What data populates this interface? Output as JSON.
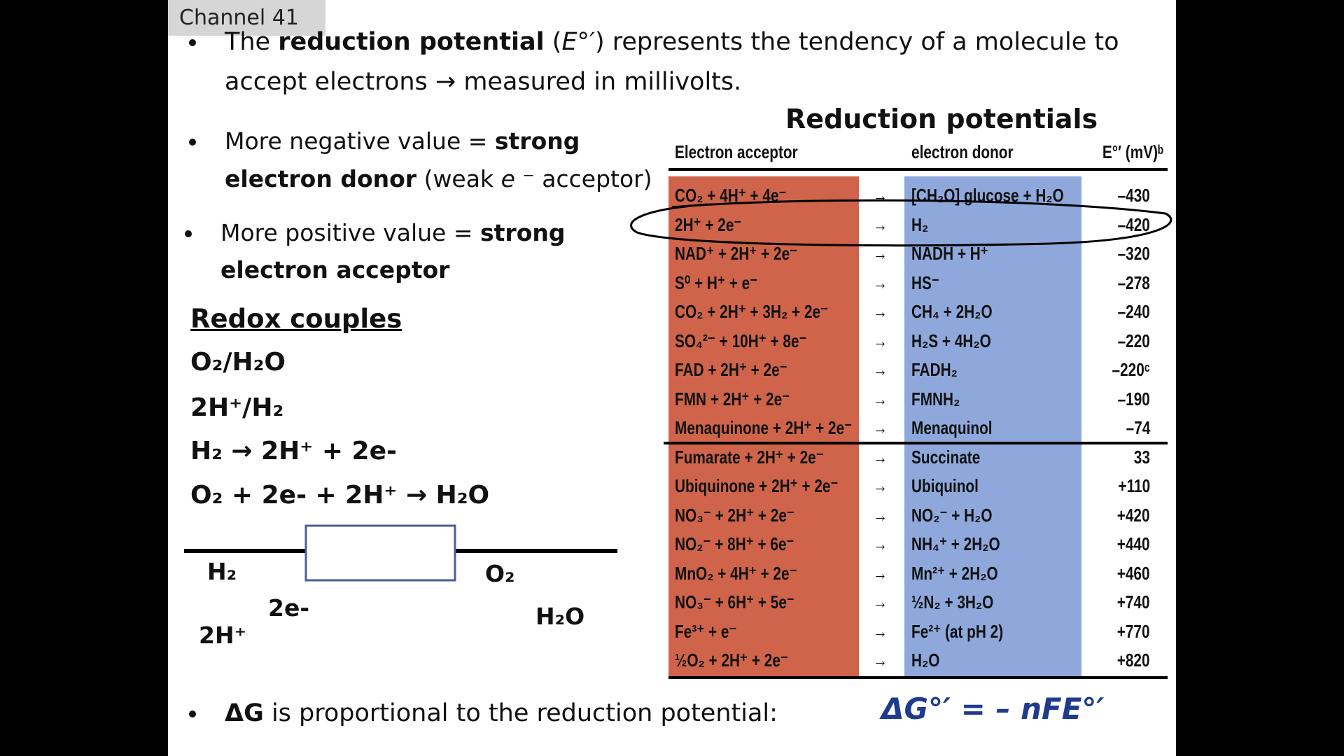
{
  "channel": "Channel 41",
  "bullets": [
    [
      "The ",
      "reduction potential",
      " (",
      "E°′",
      ") represents the tendency of a molecule to accept electrons → measured in millivolts."
    ],
    [
      "More negative value = ",
      "strong electron donor",
      " (weak ",
      "e",
      " ⁻ acceptor)"
    ],
    [
      "More positive value = ",
      "strong electron acceptor"
    ],
    [
      "ΔG",
      " is proportional to the reduction potential:"
    ]
  ],
  "formula": "ΔG°′ = – nFE°′",
  "redox": {
    "title": "Redox couples",
    "lines": [
      "O₂/H₂O",
      "2H⁺/H₂",
      "H₂ → 2H⁺ + 2e-",
      "O₂ + 2e- + 2H⁺ → H₂O"
    ]
  },
  "diagram": {
    "labels": [
      "H₂",
      "2e-",
      "2H⁺",
      "O₂",
      "H₂O"
    ]
  },
  "table": {
    "title": "Reduction potentials",
    "headers": [
      "Electron acceptor",
      "electron donor",
      "E°′ (mV)ᵇ"
    ],
    "rows": [
      [
        "CO₂ + 4H⁺ + 4e⁻",
        "→",
        "[CH₂O] glucose + H₂O",
        "–430"
      ],
      [
        "2H⁺ + 2e⁻",
        "→",
        "H₂",
        "–420"
      ],
      [
        "NAD⁺ + 2H⁺ + 2e⁻",
        "→",
        "NADH + H⁺",
        "–320"
      ],
      [
        "S⁰ + H⁺ + e⁻",
        "→",
        "HS⁻",
        "–278"
      ],
      [
        "CO₂ + 2H⁺ + 3H₂ + 2e⁻",
        "→",
        "CH₄ + 2H₂O",
        "–240"
      ],
      [
        "SO₄²⁻ + 10H⁺ + 8e⁻",
        "→",
        "H₂S + 4H₂O",
        "–220"
      ],
      [
        "FAD + 2H⁺ + 2e⁻",
        "→",
        "FADH₂",
        "–220ᶜ"
      ],
      [
        "FMN + 2H⁺ + 2e⁻",
        "→",
        "FMNH₂",
        "–190"
      ],
      [
        "Menaquinone + 2H⁺ + 2e⁻",
        "→",
        "Menaquinol",
        "–74"
      ],
      [
        "Fumarate + 2H⁺ + 2e⁻",
        "→",
        "Succinate",
        "33"
      ],
      [
        "Ubiquinone + 2H⁺ + 2e⁻",
        "→",
        "Ubiquinol",
        "+110"
      ],
      [
        "NO₃⁻ + 2H⁺ + 2e⁻",
        "→",
        "NO₂⁻ + H₂O",
        "+420"
      ],
      [
        "NO₂⁻ + 8H⁺ + 6e⁻",
        "→",
        "NH₄⁺ + 2H₂O",
        "+440"
      ],
      [
        "MnO₂ + 4H⁺ + 2e⁻",
        "→",
        "Mn²⁺ + 2H₂O",
        "+460"
      ],
      [
        "NO₃⁻ + 6H⁺ + 5e⁻",
        "→",
        "½N₂ + 3H₂O",
        "+740"
      ],
      [
        "Fe³⁺ + e⁻",
        "→",
        "Fe²⁺ (at pH 2)",
        "+770"
      ],
      [
        "½O₂ + 2H⁺ + 2e⁻",
        "→",
        "H₂O",
        "+820"
      ]
    ]
  }
}
